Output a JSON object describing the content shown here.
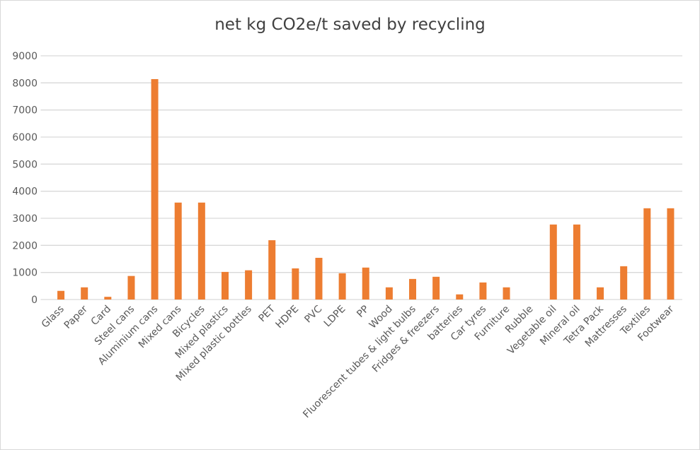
{
  "chart_data": {
    "type": "bar",
    "title": "net kg CO2e/t saved by recycling",
    "xlabel": "",
    "ylabel": "",
    "ylim": [
      0,
      9000
    ],
    "yticks": [
      0,
      1000,
      2000,
      3000,
      4000,
      5000,
      6000,
      7000,
      8000,
      9000
    ],
    "grid": true,
    "legend": "none",
    "bar_color": "#ED7D31",
    "categories": [
      "Glass",
      "Paper",
      "Card",
      "Steel cans",
      "Aluminium cans",
      "Mixed cans",
      "Bicycles",
      "Mixed plastics",
      "Mixed plastic bottles",
      "PET",
      "HDPE",
      "PVC",
      "LDPE",
      "PP",
      "Wood",
      "Fluorescent tubes &  light bulbs",
      "Fridges & freezers",
      "batteries",
      "Car tyres",
      "Furniture",
      "Rubble",
      "Vegetable oil",
      "Mineral oil",
      "Tetra Pack",
      "Mattresses",
      "Textiles",
      "Footwear"
    ],
    "values": [
      320,
      450,
      100,
      870,
      8140,
      3580,
      3580,
      1020,
      1080,
      2190,
      1150,
      1540,
      970,
      1180,
      450,
      760,
      840,
      190,
      630,
      450,
      0,
      2770,
      2770,
      450,
      1230,
      3370,
      3370
    ]
  }
}
